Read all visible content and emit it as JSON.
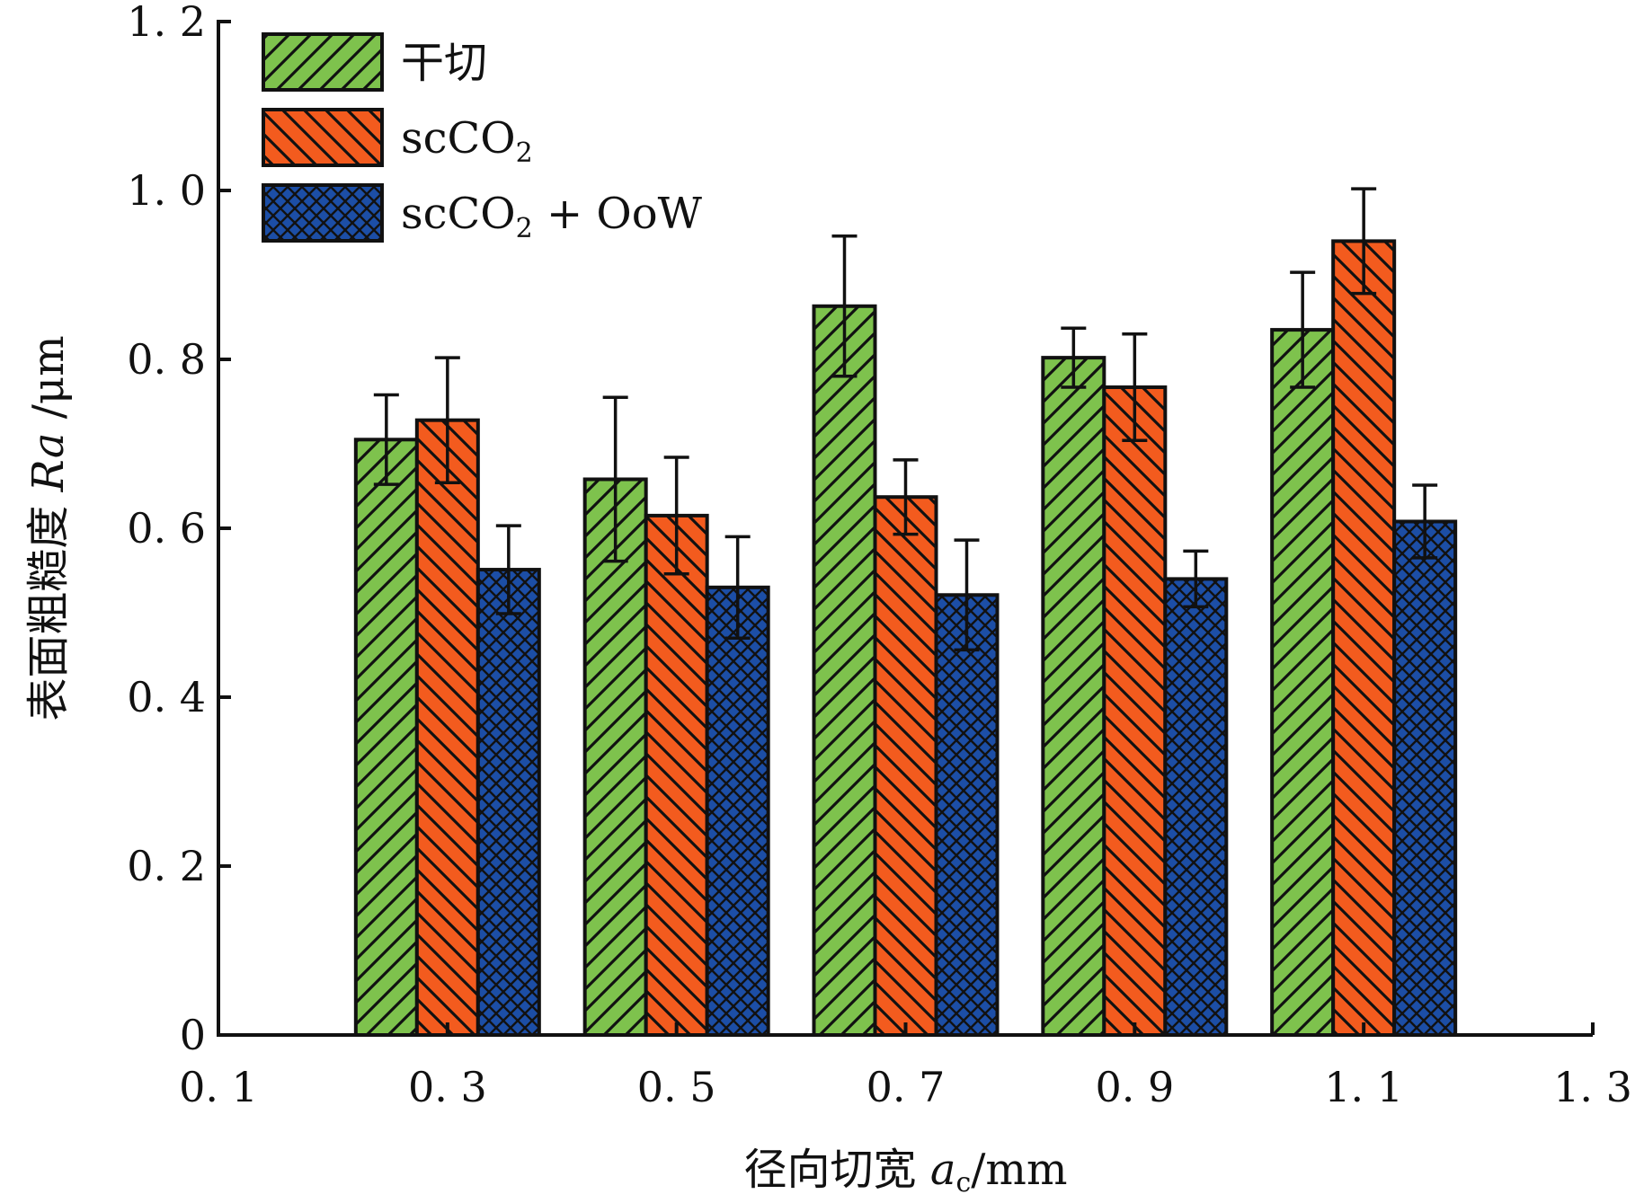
{
  "chart_data": {
    "type": "bar",
    "title": "",
    "xlabel": {
      "text": "径向切宽 ",
      "var": "a",
      "sub": "c",
      "unit": "/mm"
    },
    "ylabel": {
      "text": "表面粗糙度 ",
      "var": "Ra",
      "unit": " /μm"
    },
    "x_ticks": [
      "0. 1",
      "0. 3",
      "0. 5",
      "0. 7",
      "0. 9",
      "1. 1",
      "1. 3"
    ],
    "y_ticks": [
      "0",
      "0. 2",
      "0. 4",
      "0. 6",
      "0. 8",
      "1. 0",
      "1. 2"
    ],
    "xlim": [
      0.1,
      1.3
    ],
    "ylim": [
      0,
      1.2
    ],
    "categories": [
      0.3,
      0.5,
      0.7,
      0.9,
      1.1
    ],
    "series": [
      {
        "name": "干切",
        "name_sub": "",
        "name_tail": "",
        "color": "#7ec24d",
        "pattern": "diag-up",
        "values": [
          0.705,
          0.658,
          0.863,
          0.802,
          0.835
        ],
        "errors": [
          0.053,
          0.097,
          0.083,
          0.035,
          0.068
        ]
      },
      {
        "name": "scCO",
        "name_sub": "2",
        "name_tail": "",
        "color": "#f35b1e",
        "pattern": "diag-down",
        "values": [
          0.728,
          0.615,
          0.637,
          0.767,
          0.94
        ],
        "errors": [
          0.074,
          0.069,
          0.044,
          0.063,
          0.062
        ]
      },
      {
        "name": "scCO",
        "name_sub": "2",
        "name_tail": " + OoW",
        "color": "#1c4ea6",
        "pattern": "cross",
        "values": [
          0.551,
          0.53,
          0.521,
          0.54,
          0.608
        ],
        "errors": [
          0.052,
          0.06,
          0.065,
          0.033,
          0.043
        ]
      }
    ],
    "legend_position": "top-left",
    "grid": false
  }
}
